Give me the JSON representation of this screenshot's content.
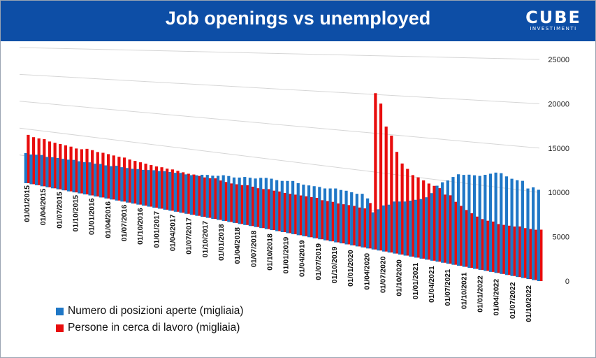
{
  "header": {
    "title": "Job openings vs unemployed",
    "logo_word": "CUBE",
    "logo_sub": "INVESTIMENTI"
  },
  "colors": {
    "header_bg": "#0d4ea6",
    "openings": "#1f77c6",
    "unemployed": "#e80d0d"
  },
  "chart_data": {
    "type": "bar",
    "title": "Job openings vs unemployed",
    "y_ticks": [
      "25000",
      "20000",
      "15000",
      "10000",
      "5000",
      "0"
    ],
    "ylim": [
      0,
      25000
    ],
    "x_labels": [
      "01/01/2015",
      "01/04/2015",
      "01/07/2015",
      "01/10/2015",
      "01/01/2016",
      "01/04/2016",
      "01/07/2016",
      "01/10/2016",
      "01/01/2017",
      "01/04/2017",
      "01/07/2017",
      "01/10/2017",
      "01/01/2018",
      "01/04/2018",
      "01/07/2018",
      "01/10/2018",
      "01/01/2019",
      "01/04/2019",
      "01/07/2019",
      "01/10/2019",
      "01/01/2020",
      "01/04/2020",
      "01/07/2020",
      "01/10/2020",
      "01/01/2021",
      "01/04/2021",
      "01/07/2021",
      "01/10/2021",
      "01/01/2022",
      "01/04/2022",
      "01/07/2022",
      "01/10/2022"
    ],
    "series": [
      {
        "name": "Numero di posizioni aperte (migliaia)",
        "color": "#1f77c6",
        "values": [
          5600,
          5500,
          5600,
          5700,
          5500,
          5600,
          5600,
          5600,
          5600,
          5700,
          5600,
          5600,
          5700,
          5600,
          5700,
          5600,
          5600,
          5800,
          5700,
          5700,
          5700,
          5800,
          5800,
          5900,
          6000,
          6000,
          6100,
          6100,
          6100,
          6200,
          6100,
          6100,
          6200,
          6400,
          6500,
          6500,
          6600,
          6800,
          6800,
          6700,
          6800,
          7000,
          7000,
          7000,
          7200,
          7300,
          7300,
          7200,
          7200,
          7300,
          7400,
          7200,
          7100,
          7100,
          7100,
          7100,
          7000,
          7100,
          7200,
          7100,
          7100,
          7000,
          6900,
          7000,
          6500,
          4800,
          5300,
          5900,
          6100,
          6600,
          6700,
          6800,
          7000,
          7200,
          7400,
          7700,
          8300,
          9300,
          9800,
          10100,
          10600,
          11000,
          11000,
          11100,
          11100,
          11100,
          11300,
          11500,
          11700,
          11700,
          11400,
          11200,
          11100,
          11100,
          10300,
          10500,
          10300
        ]
      },
      {
        "name": "Persone in cerca di lavoro (migliaia)",
        "color": "#e80d0d",
        "values": [
          9000,
          8700,
          8600,
          8600,
          8300,
          8200,
          8100,
          8000,
          7900,
          7700,
          7700,
          7900,
          7800,
          7600,
          7600,
          7500,
          7400,
          7300,
          7300,
          7100,
          7000,
          6900,
          6800,
          6700,
          6600,
          6600,
          6500,
          6500,
          6400,
          6300,
          6200,
          6200,
          6100,
          6000,
          6000,
          6100,
          5900,
          5800,
          5700,
          5700,
          5700,
          5800,
          5700,
          5600,
          5600,
          5700,
          5600,
          5600,
          5500,
          5500,
          5500,
          5500,
          5500,
          5500,
          5500,
          5300,
          5300,
          5300,
          5200,
          5200,
          5200,
          5200,
          5100,
          5100,
          5900,
          20200,
          18900,
          16000,
          14900,
          12900,
          11500,
          10900,
          10200,
          10000,
          9700,
          9400,
          9200,
          9000,
          8300,
          8300,
          7600,
          7200,
          6800,
          6500,
          6200,
          6000,
          5900,
          5900,
          5700,
          5700,
          5700,
          5700,
          5800,
          5700,
          5700,
          5700,
          5800
        ]
      }
    ],
    "legend_position": "bottom-left",
    "grid": true
  }
}
